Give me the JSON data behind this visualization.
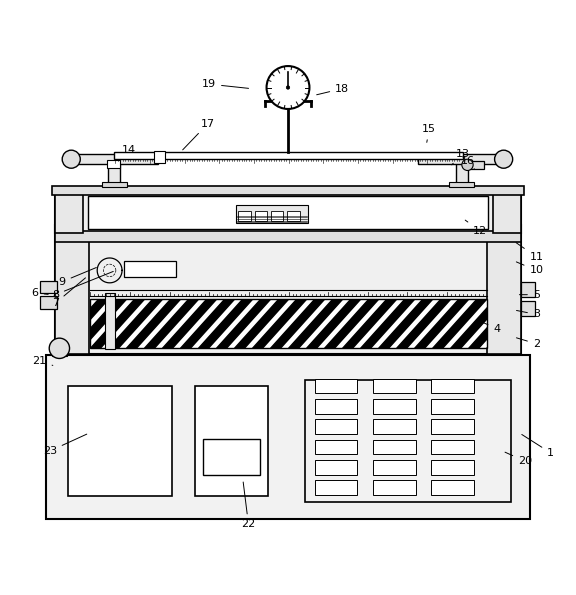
{
  "bg_color": "#ffffff",
  "line_color": "#000000",
  "figure_width": 5.76,
  "figure_height": 5.95,
  "label_positions": {
    "1": [
      0.965,
      0.225,
      0.91,
      0.26
    ],
    "2": [
      0.94,
      0.418,
      0.9,
      0.43
    ],
    "3": [
      0.94,
      0.47,
      0.9,
      0.478
    ],
    "4": [
      0.87,
      0.445,
      0.84,
      0.458
    ],
    "5": [
      0.94,
      0.505,
      0.905,
      0.505
    ],
    "6": [
      0.052,
      0.508,
      0.08,
      0.505
    ],
    "7": [
      0.088,
      0.49,
      0.145,
      0.538
    ],
    "8": [
      0.088,
      0.505,
      0.195,
      0.548
    ],
    "9": [
      0.1,
      0.528,
      0.165,
      0.555
    ],
    "10": [
      0.94,
      0.548,
      0.9,
      0.565
    ],
    "11": [
      0.94,
      0.572,
      0.9,
      0.6
    ],
    "12": [
      0.84,
      0.618,
      0.81,
      0.64
    ],
    "13": [
      0.81,
      0.755,
      0.79,
      0.735
    ],
    "14": [
      0.218,
      0.762,
      0.235,
      0.74
    ],
    "15": [
      0.75,
      0.798,
      0.745,
      0.77
    ],
    "16": [
      0.818,
      0.742,
      0.83,
      0.728
    ],
    "17": [
      0.358,
      0.808,
      0.31,
      0.758
    ],
    "18": [
      0.596,
      0.87,
      0.546,
      0.858
    ],
    "19": [
      0.36,
      0.878,
      0.435,
      0.87
    ],
    "20": [
      0.92,
      0.21,
      0.88,
      0.228
    ],
    "21": [
      0.06,
      0.388,
      0.088,
      0.378
    ],
    "22": [
      0.43,
      0.098,
      0.42,
      0.178
    ],
    "23": [
      0.078,
      0.228,
      0.148,
      0.26
    ]
  }
}
